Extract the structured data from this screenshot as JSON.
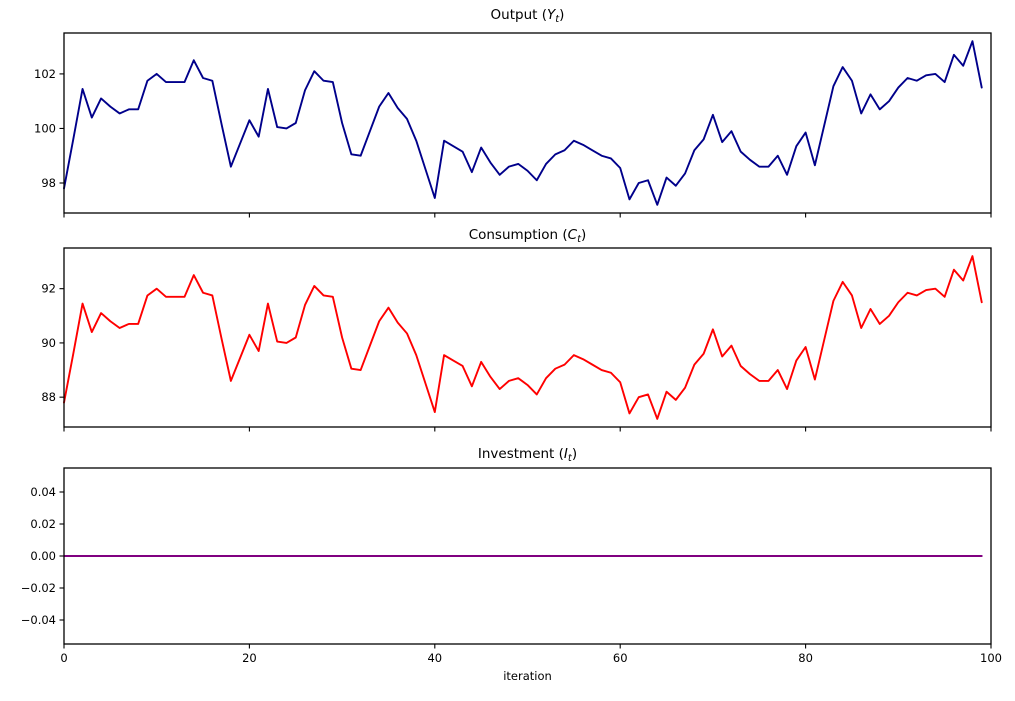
{
  "figure": {
    "xlabel": "iteration",
    "background": "#ffffff",
    "axis_color": "#000000"
  },
  "chart_data": {
    "type": "line",
    "layout": "3 stacked subplots sharing x-axis 0-100, grid off, no legend",
    "xlabel": "iteration",
    "xlim": [
      0,
      100
    ],
    "xticks": [
      {
        "label": "0",
        "value": 0
      },
      {
        "label": "20",
        "value": 20
      },
      {
        "label": "40",
        "value": 40
      },
      {
        "label": "60",
        "value": 60
      },
      {
        "label": "80",
        "value": 80
      },
      {
        "label": "100",
        "value": 100
      }
    ],
    "charts": [
      {
        "id": "output",
        "title": {
          "prefix": "Output (",
          "symbol": "Y",
          "subscript": "t",
          "suffix": ")"
        },
        "color": "#00008b",
        "ylim": [
          96.9,
          103.5
        ],
        "yticks": [
          {
            "label": "98",
            "value": 98
          },
          {
            "label": "100",
            "value": 100
          },
          {
            "label": "102",
            "value": 102
          }
        ],
        "values": [
          97.8,
          99.6,
          101.45,
          100.4,
          101.1,
          100.8,
          100.55,
          100.7,
          100.7,
          101.75,
          102.0,
          101.7,
          101.7,
          101.7,
          102.5,
          101.85,
          101.75,
          100.15,
          98.6,
          99.45,
          100.3,
          99.7,
          101.45,
          100.05,
          100.0,
          100.2,
          101.4,
          102.1,
          101.75,
          101.7,
          100.2,
          99.05,
          99.0,
          99.9,
          100.8,
          101.3,
          100.75,
          100.35,
          99.55,
          98.5,
          97.45,
          99.55,
          99.35,
          99.15,
          98.4,
          99.3,
          98.75,
          98.3,
          98.6,
          98.7,
          98.45,
          98.1,
          98.7,
          99.05,
          99.2,
          99.55,
          99.4,
          99.2,
          99.0,
          98.9,
          98.55,
          97.4,
          98.0,
          98.1,
          97.2,
          98.2,
          97.9,
          98.35,
          99.2,
          99.6,
          100.5,
          99.5,
          99.9,
          99.15,
          98.85,
          98.6,
          98.6,
          99.0,
          98.3,
          99.35,
          99.85,
          98.65,
          100.1,
          101.55,
          102.25,
          101.75,
          100.55,
          101.25,
          100.7,
          101.0,
          101.5,
          101.85,
          101.75,
          101.95,
          102.0,
          101.7,
          102.7,
          102.3,
          103.2,
          101.5
        ]
      },
      {
        "id": "consumption",
        "title": {
          "prefix": "Consumption (",
          "symbol": "C",
          "subscript": "t",
          "suffix": ")"
        },
        "color": "#ff0000",
        "ylim": [
          86.9,
          93.5
        ],
        "yticks": [
          {
            "label": "88",
            "value": 88
          },
          {
            "label": "90",
            "value": 90
          },
          {
            "label": "92",
            "value": 92
          }
        ],
        "values": [
          87.8,
          89.6,
          91.45,
          90.4,
          91.1,
          90.8,
          90.55,
          90.7,
          90.7,
          91.75,
          92.0,
          91.7,
          91.7,
          91.7,
          92.5,
          91.85,
          91.75,
          90.15,
          88.6,
          89.45,
          90.3,
          89.7,
          91.45,
          90.05,
          90.0,
          90.2,
          91.4,
          92.1,
          91.75,
          91.7,
          90.2,
          89.05,
          89.0,
          89.9,
          90.8,
          91.3,
          90.75,
          90.35,
          89.55,
          88.5,
          87.45,
          89.55,
          89.35,
          89.15,
          88.4,
          89.3,
          88.75,
          88.3,
          88.6,
          88.7,
          88.45,
          88.1,
          88.7,
          89.05,
          89.2,
          89.55,
          89.4,
          89.2,
          89.0,
          88.9,
          88.55,
          87.4,
          88.0,
          88.1,
          87.2,
          88.2,
          87.9,
          88.35,
          89.2,
          89.6,
          90.5,
          89.5,
          89.9,
          89.15,
          88.85,
          88.6,
          88.6,
          89.0,
          88.3,
          89.35,
          89.85,
          88.65,
          90.1,
          91.55,
          92.25,
          91.75,
          90.55,
          91.25,
          90.7,
          91.0,
          91.5,
          91.85,
          91.75,
          91.95,
          92.0,
          91.7,
          92.7,
          92.3,
          93.2,
          91.5
        ]
      },
      {
        "id": "investment",
        "title": {
          "prefix": "Investment (",
          "symbol": "I",
          "subscript": "t",
          "suffix": ")"
        },
        "color": "#800080",
        "ylim": [
          -0.055,
          0.055
        ],
        "yticks": [
          {
            "label": "0.04",
            "value": 0.04
          },
          {
            "label": "0.02",
            "value": 0.02
          },
          {
            "label": "0.00",
            "value": 0.0
          },
          {
            "label": "−0.02",
            "value": -0.02
          },
          {
            "label": "−0.04",
            "value": -0.04
          }
        ],
        "values": [
          0,
          0,
          0,
          0,
          0,
          0,
          0,
          0,
          0,
          0,
          0,
          0,
          0,
          0,
          0,
          0,
          0,
          0,
          0,
          0,
          0,
          0,
          0,
          0,
          0,
          0,
          0,
          0,
          0,
          0,
          0,
          0,
          0,
          0,
          0,
          0,
          0,
          0,
          0,
          0,
          0,
          0,
          0,
          0,
          0,
          0,
          0,
          0,
          0,
          0,
          0,
          0,
          0,
          0,
          0,
          0,
          0,
          0,
          0,
          0,
          0,
          0,
          0,
          0,
          0,
          0,
          0,
          0,
          0,
          0,
          0,
          0,
          0,
          0,
          0,
          0,
          0,
          0,
          0,
          0,
          0,
          0,
          0,
          0,
          0,
          0,
          0,
          0,
          0,
          0,
          0,
          0,
          0,
          0,
          0,
          0,
          0,
          0,
          0,
          0
        ]
      }
    ]
  }
}
